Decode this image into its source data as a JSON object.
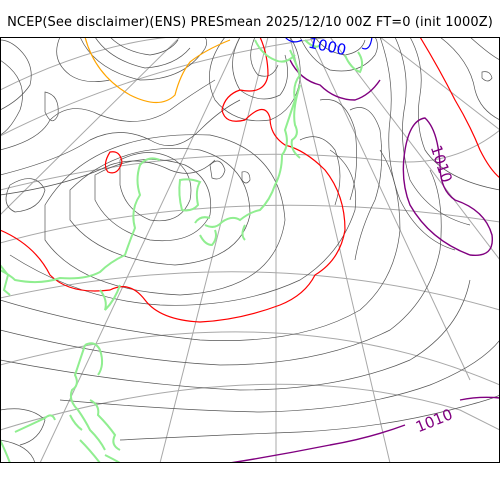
{
  "title": "NCEP(See disclaimer)(ENS) PRESmean 2025/12/10 00Z FT=0 (init 1000Z)",
  "contour_labels": {
    "blue_1000": "1000",
    "purple_1010_east": "1010",
    "purple_1010_south": "1010"
  },
  "colors": {
    "graticule": "#a8a8a8",
    "isobar": "#555555",
    "coastline": "#90ee90",
    "contour_1000": "#0000ff",
    "contour_1010": "#800080",
    "contour_1020": "#ff0000",
    "contour_990": "#ffa500"
  }
}
